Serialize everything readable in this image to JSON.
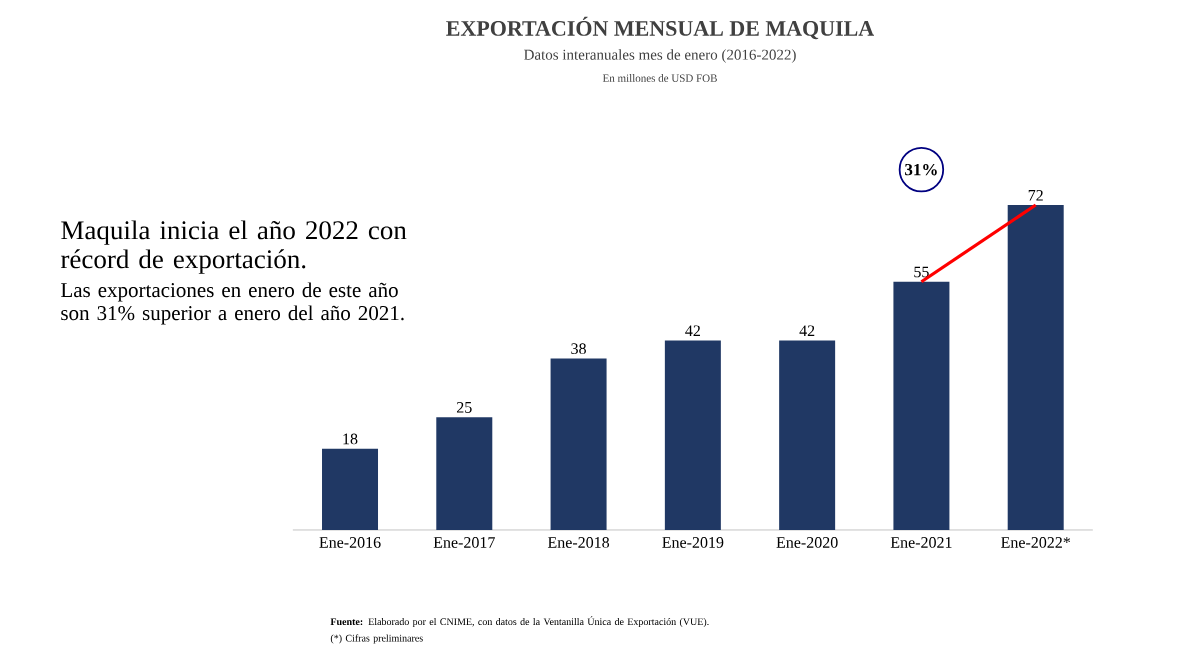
{
  "chart_data": {
    "type": "bar",
    "title": "EXPORTACIÓN MENSUAL DE MAQUILA",
    "subtitle": "Datos interanuales  mes de enero (2016-2022)",
    "categories": [
      "Ene-2016",
      "Ene-2017",
      "Ene-2018",
      "Ene-2019",
      "Ene-2020",
      "Ene-2021",
      "Ene-2022*"
    ],
    "series": [
      {
        "color": "#203864",
        "values": [
          18,
          25,
          38,
          42,
          42,
          55,
          72
        ],
        "value_labels": [
          "18",
          "25",
          "38",
          "42",
          "42",
          "55",
          "72"
        ]
      },
      {
        "type": "line",
        "color": "#ff0000",
        "values": [
          null,
          null,
          null,
          null,
          null,
          55,
          72
        ]
      }
    ],
    "annotations": [
      "Maquila inicia el año 2022 con récord de exportación.",
      "Las exportaciones en enero de este año son 31% superior a enero del año 2021.",
      "31%",
      "**Fuente:** Elaborado por el CNIME, con datos de la Ventanilla Única de Exportación (VUE).",
      "(*) Cifras preliminares",
      "En millones de USD FOB"
    ]
  }
}
